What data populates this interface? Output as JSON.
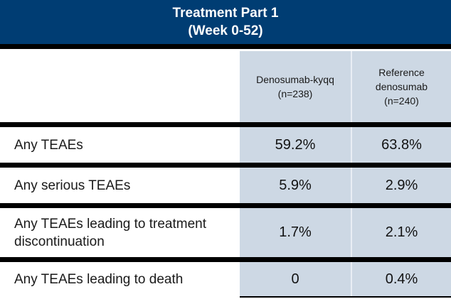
{
  "header": {
    "title_line1": "Treatment Part 1",
    "title_line2": "(Week 0-52)"
  },
  "chart_data": {
    "type": "table",
    "title": "Treatment Part 1 (Week 0-52)",
    "columns": [
      "",
      "Denosumab-kyqq (n=238)",
      "Reference denosumab (n=240)"
    ],
    "rows": [
      [
        "Any TEAEs",
        "59.2%",
        "63.8%"
      ],
      [
        "Any serious TEAEs",
        "5.9%",
        "2.9%"
      ],
      [
        "Any TEAEs leading to treatment discontinuation",
        "1.7%",
        "2.1%"
      ],
      [
        "Any TEAEs leading to death",
        "0",
        "0.4%"
      ]
    ]
  },
  "colors": {
    "banner_navy": "#003d73",
    "column_blue": "#cdd8e4",
    "divider_black": "#000000",
    "column_divider_light": "#e9eef4",
    "text_dark": "#1a1a1a",
    "banner_text": "#ffffff"
  }
}
